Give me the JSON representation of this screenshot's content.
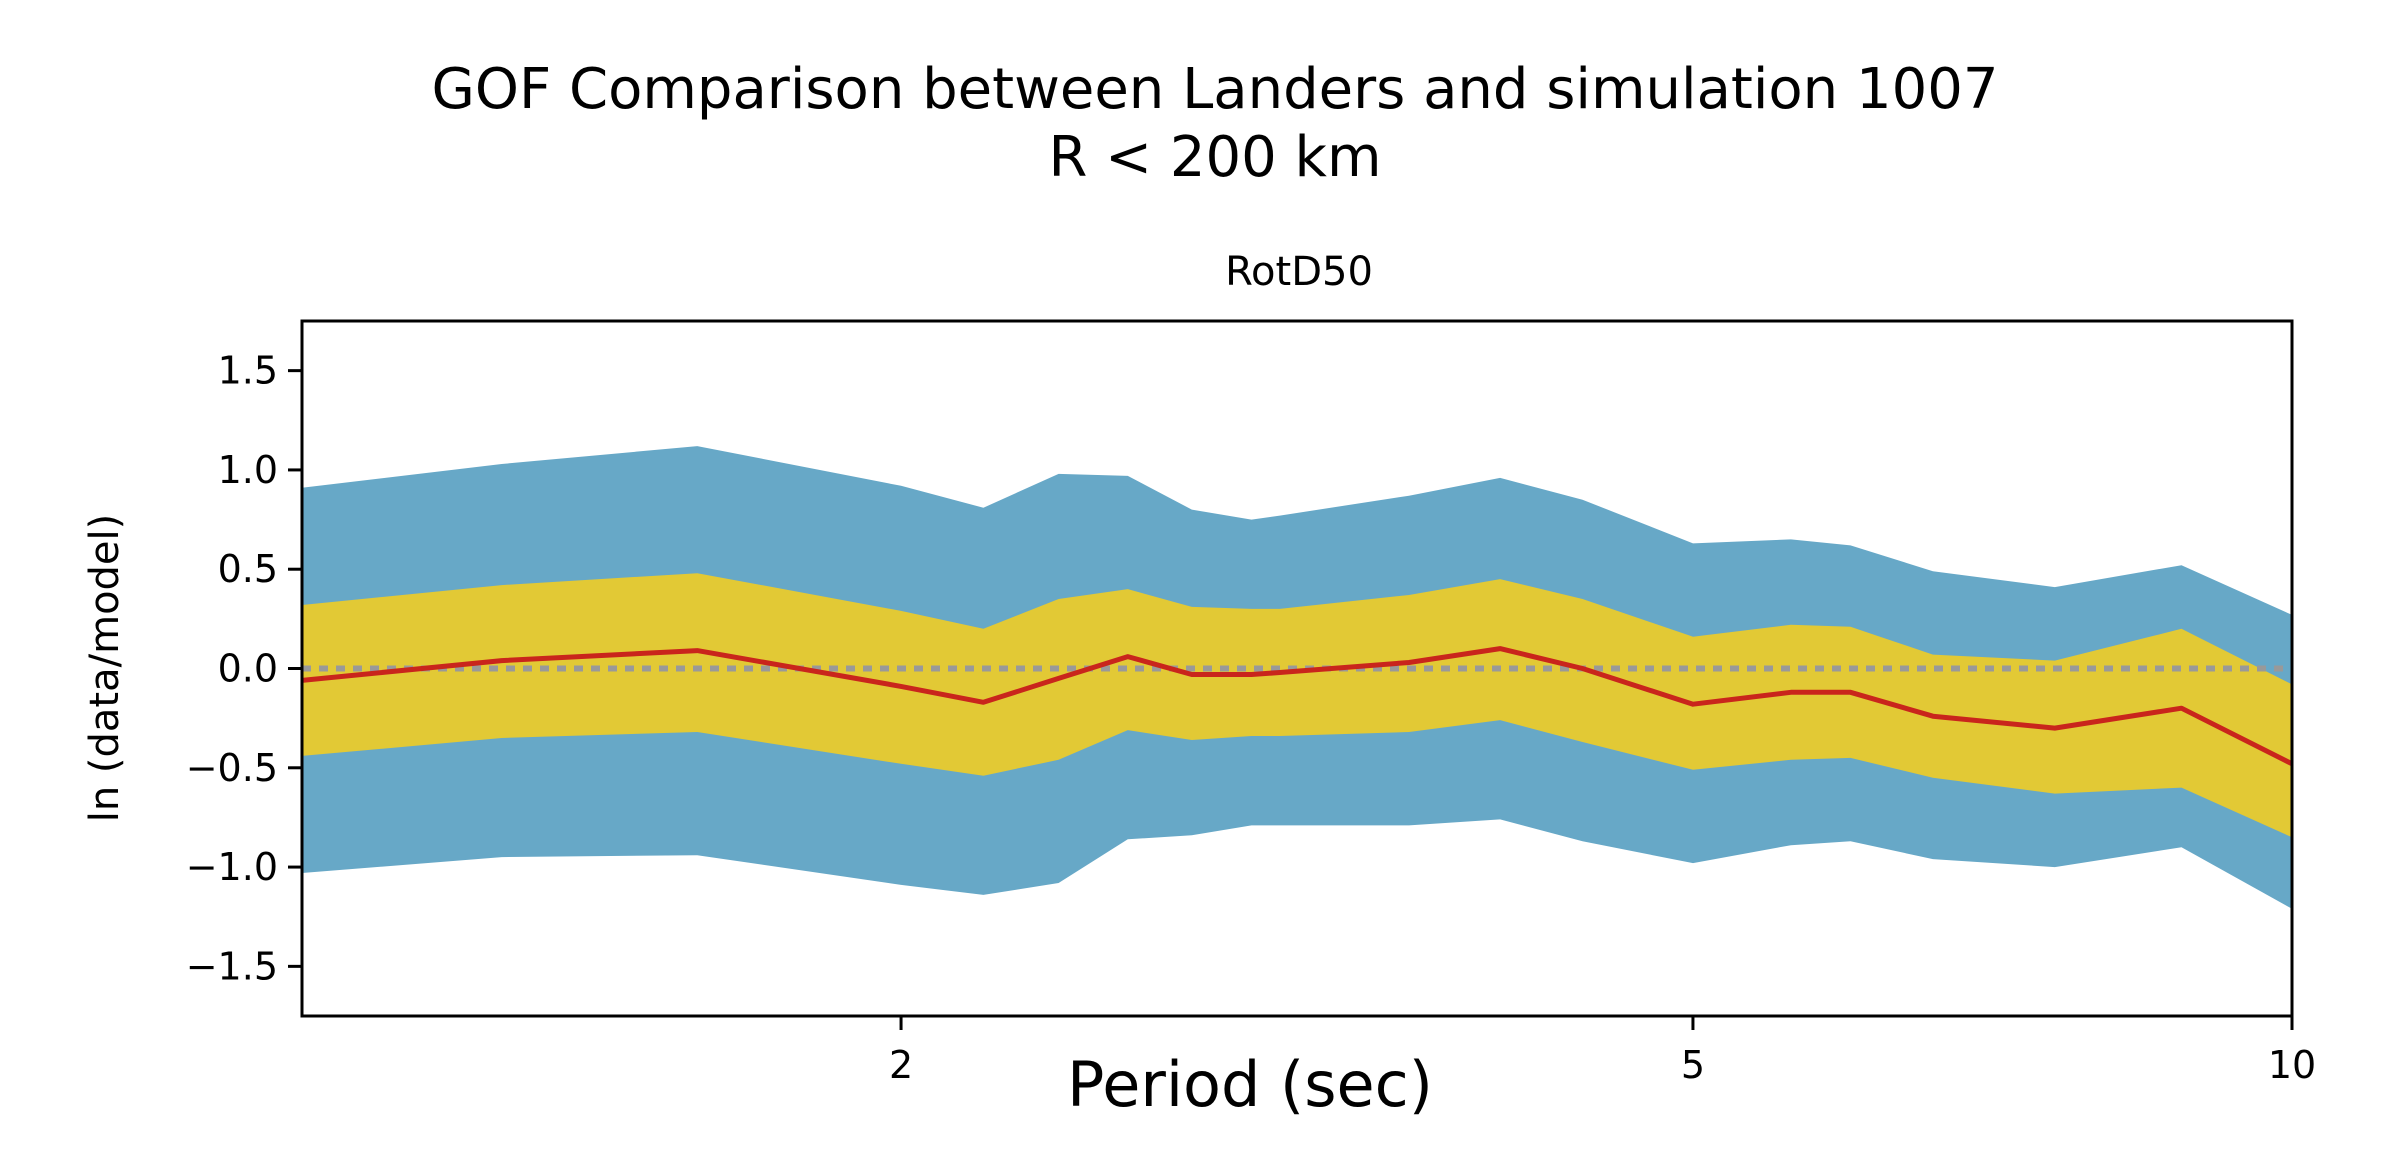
{
  "chart_data": {
    "type": "area",
    "suptitle_lines": [
      "GOF Comparison between Landers and simulation 1007",
      "R < 200 km"
    ],
    "title": "RotD50",
    "xlabel": "Period (sec)",
    "ylabel": "ln (data/model)",
    "xscale": "log",
    "xlim": [
      1.0,
      10.0
    ],
    "ylim": [
      -1.75,
      1.75
    ],
    "yticks": [
      {
        "value": 1.5,
        "label": "1.5"
      },
      {
        "value": 1.0,
        "label": "1.0"
      },
      {
        "value": 0.5,
        "label": "0.5"
      },
      {
        "value": 0.0,
        "label": "0.0"
      },
      {
        "value": -0.5,
        "label": "−0.5"
      },
      {
        "value": -1.0,
        "label": "−1.0"
      },
      {
        "value": -1.5,
        "label": "−1.5"
      }
    ],
    "xticks": [
      {
        "value": 2,
        "label": "2"
      },
      {
        "value": 5,
        "label": "5"
      },
      {
        "value": 10,
        "label": "10"
      }
    ],
    "reference_line": {
      "y": 0.0,
      "style": "dotted",
      "color": "#999999"
    },
    "x": [
      1.0,
      1.26,
      1.58,
      2.0,
      2.2,
      2.4,
      2.6,
      2.8,
      3.0,
      3.1,
      3.6,
      4.0,
      4.4,
      5.0,
      5.6,
      6.0,
      6.6,
      7.6,
      8.8,
      10.0
    ],
    "series": [
      {
        "role": "outer-band",
        "color": "#67a8c7",
        "upper": [
          0.91,
          1.03,
          1.12,
          0.92,
          0.81,
          0.98,
          0.97,
          0.8,
          0.75,
          0.77,
          0.87,
          0.96,
          0.85,
          0.63,
          0.65,
          0.62,
          0.49,
          0.41,
          0.52,
          0.27
        ],
        "lower": [
          -1.03,
          -0.95,
          -0.94,
          -1.09,
          -1.14,
          -1.08,
          -0.86,
          -0.84,
          -0.79,
          -0.79,
          -0.79,
          -0.76,
          -0.87,
          -0.98,
          -0.89,
          -0.87,
          -0.96,
          -1.0,
          -0.9,
          -1.21
        ]
      },
      {
        "role": "inner-band",
        "color": "#e2c935",
        "upper": [
          0.32,
          0.42,
          0.48,
          0.29,
          0.2,
          0.35,
          0.4,
          0.31,
          0.3,
          0.3,
          0.37,
          0.45,
          0.35,
          0.16,
          0.22,
          0.21,
          0.07,
          0.04,
          0.2,
          -0.08
        ],
        "lower": [
          -0.44,
          -0.35,
          -0.32,
          -0.48,
          -0.54,
          -0.46,
          -0.31,
          -0.36,
          -0.34,
          -0.34,
          -0.32,
          -0.26,
          -0.37,
          -0.51,
          -0.46,
          -0.45,
          -0.55,
          -0.63,
          -0.6,
          -0.85
        ]
      },
      {
        "role": "mean-line",
        "color": "#c9251c",
        "values": [
          -0.06,
          0.04,
          0.09,
          -0.09,
          -0.17,
          -0.05,
          0.06,
          -0.03,
          -0.03,
          -0.02,
          0.03,
          0.1,
          0.0,
          -0.18,
          -0.12,
          -0.12,
          -0.24,
          -0.3,
          -0.2,
          -0.48
        ]
      }
    ]
  }
}
